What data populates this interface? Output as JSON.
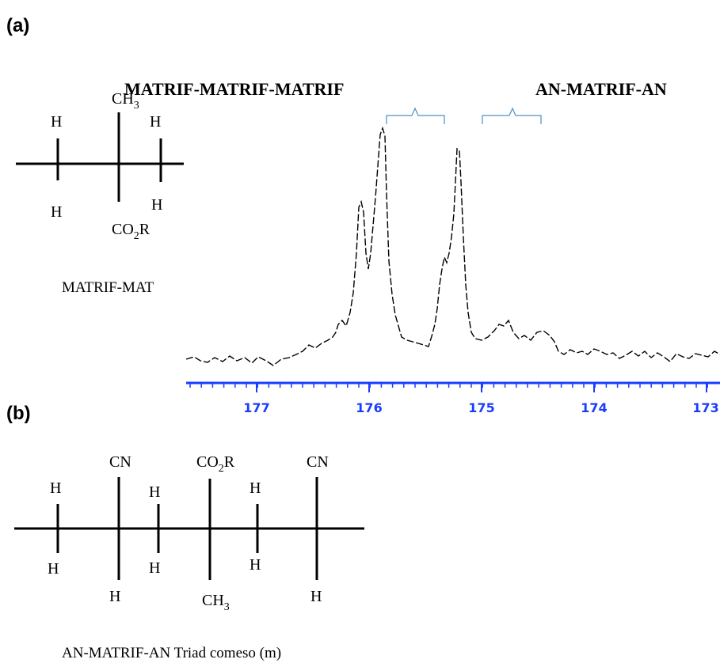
{
  "panels": {
    "a": {
      "label": "(a)"
    },
    "b": {
      "label": "(b)"
    }
  },
  "molecule_a": {
    "h_top_left": "H",
    "ch3_main": "CH",
    "ch3_sub": "3",
    "h_top_right": "H",
    "h_bottom_left": "H",
    "h_bottom_right": "H",
    "co2r_main_1": "CO",
    "co2r_sub": "2",
    "co2r_main_2": "R",
    "caption": "MATRIF-MAT"
  },
  "spectrum": {
    "label_left": "MATRIF-MATRIF-MATRIF",
    "label_right": "AN-MATRIF-AN",
    "axis_ticks": [
      "177",
      "176",
      "175",
      "174",
      "173"
    ],
    "colors": {
      "axis": "#1a3cff",
      "bracket": "#4a90c8",
      "trace": "#000000"
    }
  },
  "molecule_b": {
    "cn_1": "CN",
    "co2r_main_1": "CO",
    "co2r_sub": "2",
    "co2r_main_2": "R",
    "cn_2": "CN",
    "h_top_1": "H",
    "h_top_2": "H",
    "h_top_3": "H",
    "h_bottom_1": "H",
    "h_bottom_2": "H",
    "h_bottom_3": "H",
    "h_lower_1": "H",
    "ch3_main": "CH",
    "ch3_sub": "3",
    "h_lower_2": "H",
    "caption": "AN-MATRIF-AN Triad comeso (m)"
  }
}
